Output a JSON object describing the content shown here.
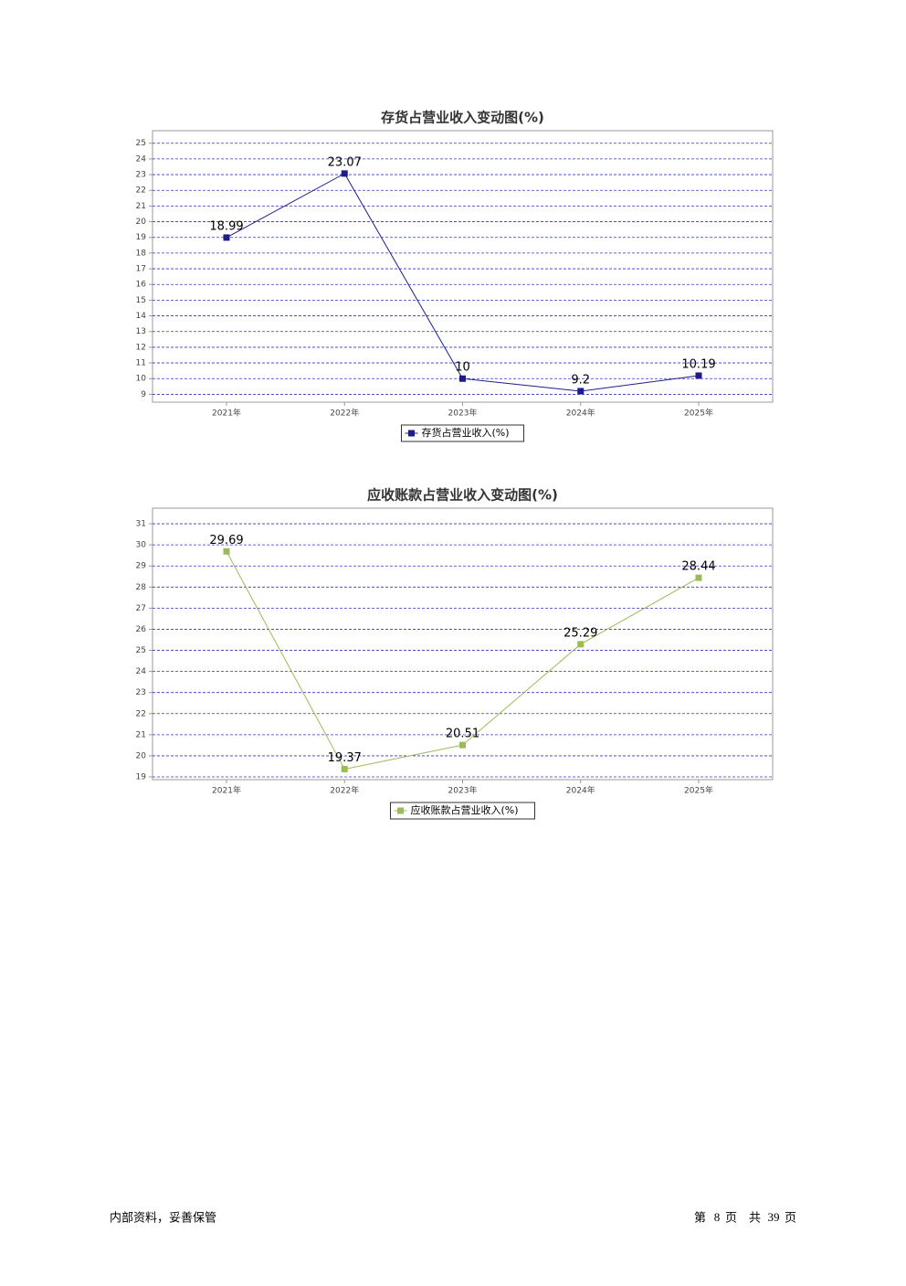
{
  "chart_data": [
    {
      "type": "line",
      "title": "存货占营业收入变动图(%)",
      "categories": [
        "2021年",
        "2022年",
        "2023年",
        "2024年",
        "2025年"
      ],
      "series": [
        {
          "name": "存货占营业收入(%)",
          "color": "#1c1c8f",
          "values": [
            18.99,
            23.07,
            10,
            9.2,
            10.19
          ]
        }
      ],
      "ylim": [
        8.5,
        25.8
      ],
      "yticks": [
        9,
        10,
        11,
        12,
        13,
        14,
        15,
        16,
        17,
        18,
        19,
        20,
        21,
        22,
        23,
        24,
        25
      ],
      "grid": true,
      "legend": "bottom"
    },
    {
      "type": "line",
      "title": "应收账款占营业收入变动图(%)",
      "categories": [
        "2021年",
        "2022年",
        "2023年",
        "2024年",
        "2025年"
      ],
      "series": [
        {
          "name": "应收账款占营业收入(%)",
          "color": "#9bbb59",
          "values": [
            29.69,
            19.37,
            20.51,
            25.29,
            28.44
          ]
        }
      ],
      "ylim": [
        18.87,
        31.74
      ],
      "yticks": [
        19,
        20,
        21,
        22,
        23,
        24,
        25,
        26,
        27,
        28,
        29,
        30,
        31
      ],
      "grid": true,
      "legend": "bottom"
    }
  ],
  "footer": {
    "left": "内部资料，妥善保管",
    "page_prefix": "第",
    "page": 8,
    "page_suffix": "页",
    "total_prefix": "共",
    "total": 39,
    "total_suffix": "页"
  }
}
